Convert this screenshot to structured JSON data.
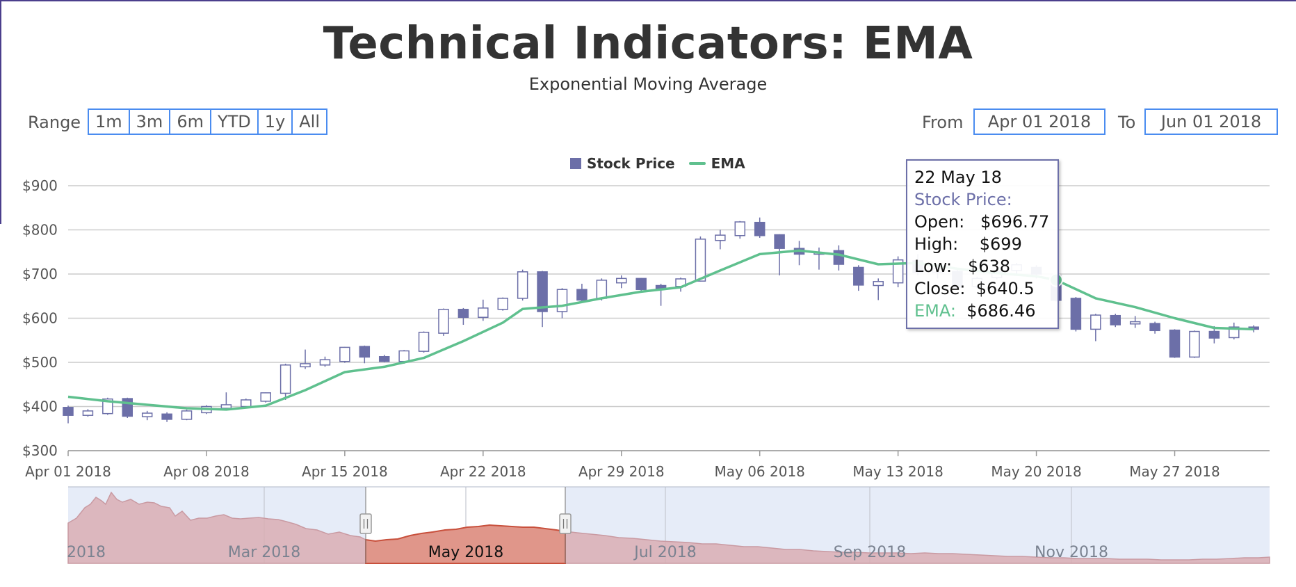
{
  "title": "Technical Indicators: EMA",
  "subtitle": "Exponential Moving Average",
  "range_selector": {
    "label": "Range",
    "buttons": [
      "1m",
      "3m",
      "6m",
      "YTD",
      "1y",
      "All"
    ],
    "from_label": "From",
    "from_value": "Apr 01 2018",
    "to_label": "To",
    "to_value": "Jun 01 2018"
  },
  "colors": {
    "candle": "#6c6fa8",
    "ema": "#5fc08e",
    "navigator_fill": "#d9aeb4",
    "navigator_selected": "#e0968a",
    "navigator_band": "#e6ecf8",
    "input_border": "#4a8cf0"
  },
  "tooltip": {
    "date": "22 May 18",
    "series": "Stock Price:",
    "open_label": "Open:",
    "open": "$696.77",
    "high_label": "High:",
    "high": "$699",
    "low_label": "Low:",
    "low": "$638",
    "close_label": "Close:",
    "close": "$640.5",
    "ema_label": "EMA:",
    "ema": "$686.46"
  },
  "navigator": {
    "labels": [
      "2018",
      "Mar 2018",
      "May 2018",
      "Jul 2018",
      "Sep 2018",
      "Nov 2018"
    ]
  },
  "chart_data": {
    "type": "candlestick",
    "legend": [
      "Stock Price",
      "EMA"
    ],
    "legend_position": "top-center",
    "y_ticks": [
      "$300",
      "$400",
      "$500",
      "$600",
      "$700",
      "$800",
      "$900"
    ],
    "ylim": [
      300,
      900
    ],
    "x_ticks": [
      "Apr 01 2018",
      "Apr 08 2018",
      "Apr 15 2018",
      "Apr 22 2018",
      "Apr 29 2018",
      "May 06 2018",
      "May 13 2018",
      "May 20 2018",
      "May 27 2018"
    ],
    "grid": true,
    "series": [
      {
        "name": "Stock Price",
        "points": [
          {
            "day": 0,
            "o": 398,
            "h": 402,
            "l": 362,
            "c": 380
          },
          {
            "day": 1,
            "o": 380,
            "h": 394,
            "l": 377,
            "c": 390
          },
          {
            "day": 2,
            "o": 384,
            "h": 420,
            "l": 381,
            "c": 417
          },
          {
            "day": 3,
            "o": 418,
            "h": 420,
            "l": 374,
            "c": 378
          },
          {
            "day": 4,
            "o": 377,
            "h": 390,
            "l": 369,
            "c": 385
          },
          {
            "day": 5,
            "o": 383,
            "h": 387,
            "l": 365,
            "c": 371
          },
          {
            "day": 6,
            "o": 371,
            "h": 393,
            "l": 369,
            "c": 390
          },
          {
            "day": 7,
            "o": 386,
            "h": 403,
            "l": 383,
            "c": 400
          },
          {
            "day": 8,
            "o": 396,
            "h": 432,
            "l": 391,
            "c": 404
          },
          {
            "day": 9,
            "o": 400,
            "h": 418,
            "l": 397,
            "c": 415
          },
          {
            "day": 10,
            "o": 412,
            "h": 432,
            "l": 409,
            "c": 431
          },
          {
            "day": 11,
            "o": 430,
            "h": 497,
            "l": 415,
            "c": 494
          },
          {
            "day": 12,
            "o": 490,
            "h": 529,
            "l": 485,
            "c": 497
          },
          {
            "day": 13,
            "o": 494,
            "h": 513,
            "l": 490,
            "c": 506
          },
          {
            "day": 14,
            "o": 502,
            "h": 535,
            "l": 499,
            "c": 534
          },
          {
            "day": 15,
            "o": 536,
            "h": 538,
            "l": 498,
            "c": 512
          },
          {
            "day": 16,
            "o": 513,
            "h": 517,
            "l": 500,
            "c": 502
          },
          {
            "day": 17,
            "o": 502,
            "h": 528,
            "l": 497,
            "c": 526
          },
          {
            "day": 18,
            "o": 525,
            "h": 570,
            "l": 522,
            "c": 568
          },
          {
            "day": 19,
            "o": 566,
            "h": 622,
            "l": 560,
            "c": 620
          },
          {
            "day": 20,
            "o": 620,
            "h": 623,
            "l": 585,
            "c": 602
          },
          {
            "day": 21,
            "o": 602,
            "h": 642,
            "l": 594,
            "c": 623
          },
          {
            "day": 22,
            "o": 620,
            "h": 647,
            "l": 617,
            "c": 645
          },
          {
            "day": 23,
            "o": 645,
            "h": 710,
            "l": 640,
            "c": 705
          },
          {
            "day": 24,
            "o": 705,
            "h": 707,
            "l": 580,
            "c": 615
          },
          {
            "day": 25,
            "o": 615,
            "h": 668,
            "l": 600,
            "c": 665
          },
          {
            "day": 26,
            "o": 665,
            "h": 678,
            "l": 638,
            "c": 641
          },
          {
            "day": 27,
            "o": 645,
            "h": 690,
            "l": 640,
            "c": 686
          },
          {
            "day": 28,
            "o": 680,
            "h": 697,
            "l": 668,
            "c": 690
          },
          {
            "day": 29,
            "o": 690,
            "h": 691,
            "l": 662,
            "c": 665
          },
          {
            "day": 30,
            "o": 674,
            "h": 678,
            "l": 628,
            "c": 666
          },
          {
            "day": 31,
            "o": 672,
            "h": 692,
            "l": 660,
            "c": 689
          },
          {
            "day": 32,
            "o": 684,
            "h": 785,
            "l": 683,
            "c": 779
          },
          {
            "day": 33,
            "o": 776,
            "h": 800,
            "l": 756,
            "c": 788
          },
          {
            "day": 34,
            "o": 787,
            "h": 820,
            "l": 780,
            "c": 818
          },
          {
            "day": 35,
            "o": 817,
            "h": 828,
            "l": 782,
            "c": 787
          },
          {
            "day": 36,
            "o": 789,
            "h": 790,
            "l": 697,
            "c": 758
          },
          {
            "day": 37,
            "o": 758,
            "h": 775,
            "l": 720,
            "c": 745
          },
          {
            "day": 38,
            "o": 745,
            "h": 760,
            "l": 710,
            "c": 748
          },
          {
            "day": 39,
            "o": 753,
            "h": 765,
            "l": 708,
            "c": 722
          },
          {
            "day": 40,
            "o": 715,
            "h": 720,
            "l": 662,
            "c": 675
          },
          {
            "day": 41,
            "o": 674,
            "h": 690,
            "l": 641,
            "c": 683
          },
          {
            "day": 42,
            "o": 680,
            "h": 740,
            "l": 670,
            "c": 732
          },
          {
            "day": 43,
            "o": 730,
            "h": 745,
            "l": 697,
            "c": 704
          },
          {
            "day": 44,
            "o": 704,
            "h": 720,
            "l": 690,
            "c": 712
          },
          {
            "day": 45,
            "o": 706,
            "h": 712,
            "l": 665,
            "c": 670
          },
          {
            "day": 46,
            "o": 672,
            "h": 694,
            "l": 668,
            "c": 690
          },
          {
            "day": 47,
            "o": 692,
            "h": 712,
            "l": 688,
            "c": 705
          },
          {
            "day": 48,
            "o": 708,
            "h": 725,
            "l": 700,
            "c": 721
          },
          {
            "day": 49,
            "o": 715,
            "h": 720,
            "l": 690,
            "c": 700
          },
          {
            "day": 50,
            "o": 696.77,
            "h": 699,
            "l": 638,
            "c": 640.5
          },
          {
            "day": 51,
            "o": 645,
            "h": 648,
            "l": 570,
            "c": 575
          },
          {
            "day": 52,
            "o": 575,
            "h": 610,
            "l": 548,
            "c": 607
          },
          {
            "day": 53,
            "o": 606,
            "h": 610,
            "l": 580,
            "c": 585
          },
          {
            "day": 54,
            "o": 587,
            "h": 605,
            "l": 578,
            "c": 592
          },
          {
            "day": 55,
            "o": 588,
            "h": 592,
            "l": 565,
            "c": 572
          },
          {
            "day": 56,
            "o": 573,
            "h": 575,
            "l": 510,
            "c": 512
          },
          {
            "day": 57,
            "o": 512,
            "h": 572,
            "l": 510,
            "c": 570
          },
          {
            "day": 58,
            "o": 570,
            "h": 582,
            "l": 543,
            "c": 555
          },
          {
            "day": 59,
            "o": 556,
            "h": 590,
            "l": 552,
            "c": 580
          },
          {
            "day": 60,
            "o": 580,
            "h": 584,
            "l": 568,
            "c": 575
          }
        ]
      },
      {
        "name": "EMA",
        "points": [
          [
            0,
            422
          ],
          [
            2,
            412
          ],
          [
            4,
            404
          ],
          [
            6,
            396
          ],
          [
            8,
            393
          ],
          [
            10,
            402
          ],
          [
            12,
            437
          ],
          [
            14,
            478
          ],
          [
            16,
            490
          ],
          [
            18,
            510
          ],
          [
            20,
            548
          ],
          [
            22,
            590
          ],
          [
            23,
            621
          ],
          [
            25,
            628
          ],
          [
            27,
            645
          ],
          [
            29,
            660
          ],
          [
            31,
            670
          ],
          [
            33,
            708
          ],
          [
            35,
            745
          ],
          [
            37,
            753
          ],
          [
            39,
            744
          ],
          [
            41,
            722
          ],
          [
            43,
            725
          ],
          [
            45,
            712
          ],
          [
            47,
            702
          ],
          [
            49,
            695
          ],
          [
            50,
            686.46
          ],
          [
            52,
            645
          ],
          [
            54,
            625
          ],
          [
            56,
            600
          ],
          [
            58,
            578
          ],
          [
            60,
            575
          ]
        ]
      }
    ]
  }
}
